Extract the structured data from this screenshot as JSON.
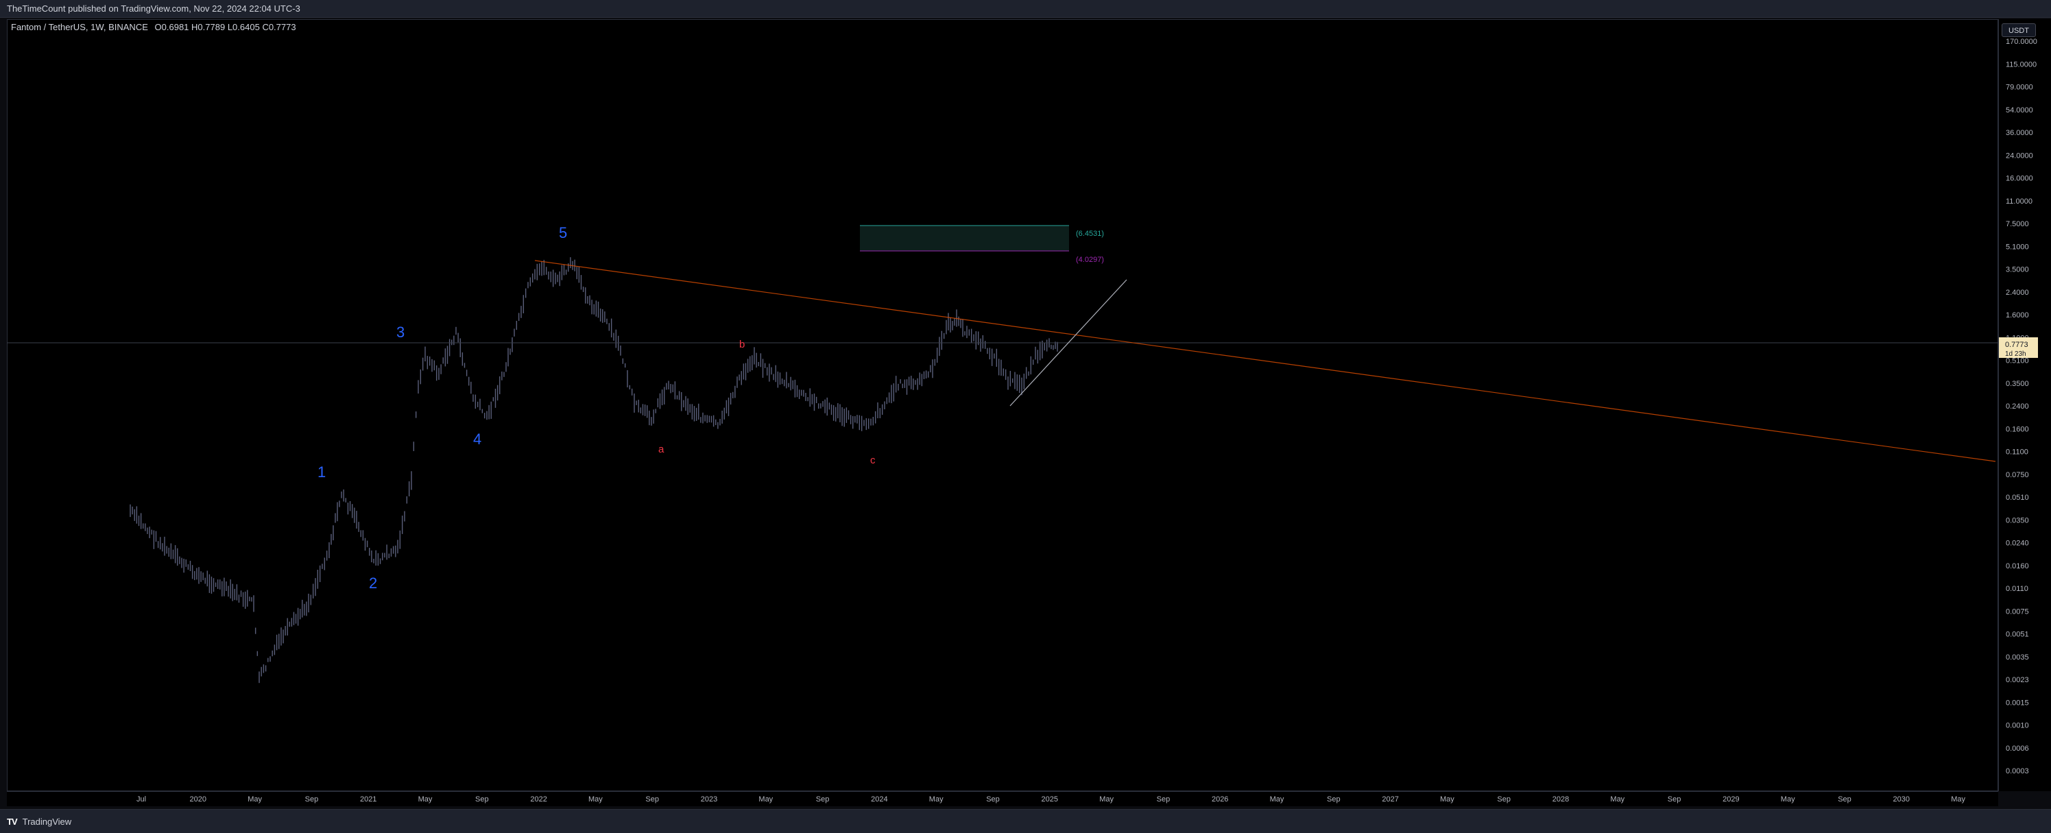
{
  "header": {
    "publisher_line": "TheTimeCount published on TradingView.com, Nov 22, 2024 22:04 UTC-3"
  },
  "symbol": {
    "name": "Fantom / TetherUS, 1W, BINANCE",
    "open_label": "O",
    "open": "0.6981",
    "high_label": "H",
    "high": "0.7789",
    "low_label": "L",
    "low": "0.6405",
    "close_label": "C",
    "close": "0.7773"
  },
  "price_axis": {
    "currency": "USDT",
    "ticks": [
      "170.0000",
      "115.0000",
      "79.0000",
      "54.0000",
      "36.0000",
      "24.0000",
      "16.0000",
      "11.0000",
      "7.5000",
      "5.1000",
      "3.5000",
      "2.4000",
      "1.6000",
      "1.1000",
      "0.5100",
      "0.3500",
      "0.2400",
      "0.1600",
      "0.1100",
      "0.0750",
      "0.0510",
      "0.0350",
      "0.0240",
      "0.0160",
      "0.0110",
      "0.0075",
      "0.0051",
      "0.0035",
      "0.0023",
      "0.0015",
      "0.0010",
      "0.0006",
      "0.0003"
    ],
    "last_price": "0.7773",
    "countdown": "1d 23h"
  },
  "time_axis": {
    "labels": [
      "Jul",
      "2020",
      "May",
      "Sep",
      "2021",
      "May",
      "Sep",
      "2022",
      "May",
      "Sep",
      "2023",
      "May",
      "Sep",
      "2024",
      "May",
      "Sep",
      "2025",
      "May",
      "Sep",
      "2026",
      "May",
      "Sep",
      "2027",
      "May",
      "Sep",
      "2028",
      "May",
      "Sep",
      "2029",
      "May",
      "Sep",
      "2030",
      "May"
    ]
  },
  "annotations": {
    "wave_labels": [
      "1",
      "2",
      "3",
      "4",
      "5"
    ],
    "correction_labels": [
      "a",
      "b",
      "c"
    ],
    "fib_upper": "(6.4531)",
    "fib_lower": "(4.0297)"
  },
  "colors": {
    "wave_blue": "#2962ff",
    "correction_red": "#f23645",
    "trendline": "#e65100",
    "fib_teal": "#26a69a",
    "fib_purple": "#9c27b0",
    "candles": "#5a5f7a",
    "last_price_bg": "#f5e6b8"
  },
  "footer": {
    "brand": "TradingView",
    "logo_mark": "TV"
  }
}
